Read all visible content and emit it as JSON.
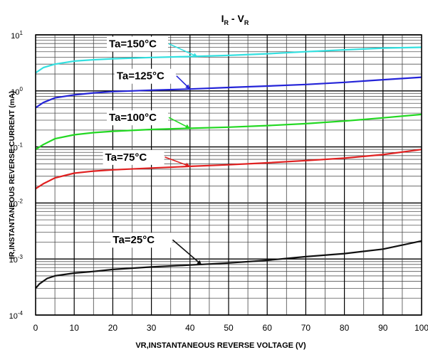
{
  "chart_data": {
    "type": "line",
    "title_main": "I",
    "title_main_sub": "R",
    "title_sep": " - V",
    "title_sep_sub": "R",
    "xlabel": "VR,INSTANTANEOUS REVERSE VOLTAGE (V)",
    "ylabel": "IR,INSTANTANEOUS REVERSE CURRENT (mA)",
    "x_scale": "linear",
    "y_scale": "log",
    "xlim": [
      0,
      100
    ],
    "ylim": [
      0.0001,
      10
    ],
    "x_ticks": [
      "0",
      "10",
      "20",
      "30",
      "40",
      "50",
      "60",
      "70",
      "80",
      "90",
      "100"
    ],
    "y_ticks": [
      {
        "base": "10",
        "exp": "1"
      },
      {
        "base": "10",
        "exp": "0"
      },
      {
        "base": "10",
        "exp": "-1"
      },
      {
        "base": "10",
        "exp": "-2"
      },
      {
        "base": "10",
        "exp": "-3"
      },
      {
        "base": "10",
        "exp": "-4"
      }
    ],
    "grid": true,
    "series": [
      {
        "name": "Ta=150°C",
        "color": "#33e0e0",
        "x": [
          0,
          2,
          5,
          10,
          15,
          20,
          30,
          40,
          50,
          60,
          70,
          80,
          90,
          100
        ],
        "y": [
          2.1,
          2.6,
          3.0,
          3.4,
          3.6,
          3.75,
          3.95,
          4.1,
          4.3,
          4.6,
          5.0,
          5.4,
          5.8,
          6.0
        ]
      },
      {
        "name": "Ta=125°C",
        "color": "#2424d8",
        "x": [
          0,
          2,
          5,
          10,
          15,
          20,
          30,
          40,
          50,
          60,
          70,
          80,
          90,
          100
        ],
        "y": [
          0.5,
          0.62,
          0.75,
          0.85,
          0.92,
          0.97,
          1.03,
          1.08,
          1.15,
          1.22,
          1.3,
          1.42,
          1.58,
          1.75
        ]
      },
      {
        "name": "Ta=100°C",
        "color": "#22d822",
        "x": [
          0,
          2,
          5,
          10,
          15,
          20,
          30,
          40,
          50,
          60,
          70,
          80,
          90,
          100
        ],
        "y": [
          0.09,
          0.11,
          0.14,
          0.165,
          0.18,
          0.19,
          0.205,
          0.215,
          0.225,
          0.24,
          0.26,
          0.29,
          0.33,
          0.38
        ]
      },
      {
        "name": "Ta=75°C",
        "color": "#e02020",
        "x": [
          0,
          2,
          5,
          10,
          15,
          20,
          30,
          40,
          50,
          60,
          70,
          80,
          90,
          100
        ],
        "y": [
          0.018,
          0.022,
          0.028,
          0.034,
          0.037,
          0.039,
          0.042,
          0.045,
          0.048,
          0.052,
          0.057,
          0.063,
          0.073,
          0.09
        ]
      },
      {
        "name": "Ta=25°C",
        "color": "#111111",
        "x": [
          0,
          1,
          3,
          5,
          10,
          15,
          20,
          30,
          40,
          50,
          60,
          70,
          80,
          90,
          100
        ],
        "y": [
          0.0003,
          0.00036,
          0.00045,
          0.0005,
          0.00056,
          0.0006,
          0.00065,
          0.00072,
          0.00078,
          0.00085,
          0.00095,
          0.0011,
          0.00125,
          0.0015,
          0.0021
        ]
      }
    ]
  }
}
